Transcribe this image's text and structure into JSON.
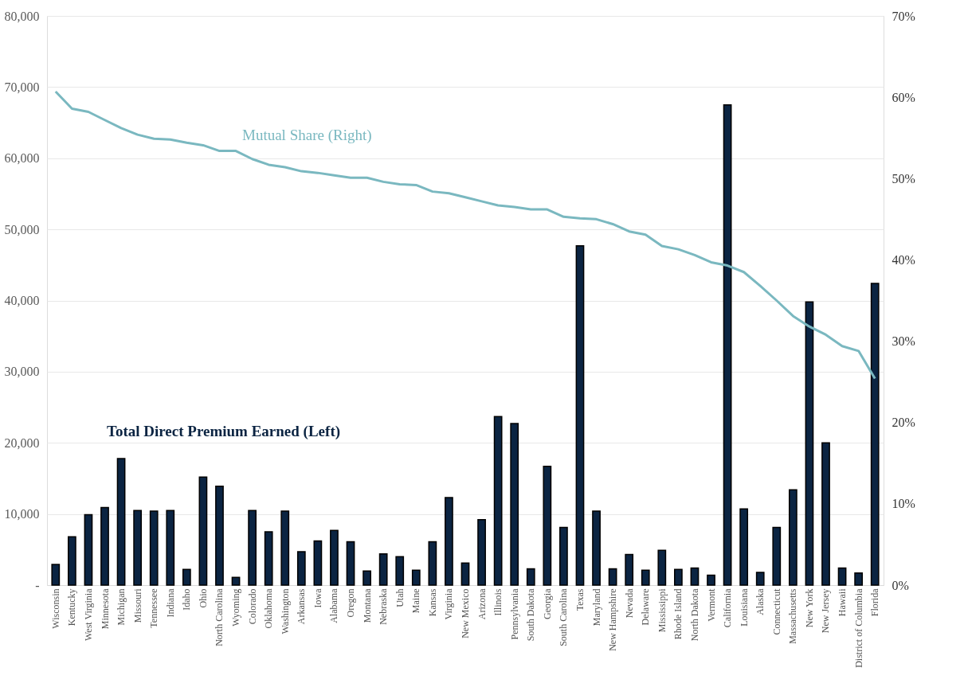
{
  "chart_data": {
    "type": "bar",
    "categories": [
      "Wisconsin",
      "Kentucky",
      "West Virginia",
      "Minnesota",
      "Michigan",
      "Missouri",
      "Tennessee",
      "Indiana",
      "Idaho",
      "Ohio",
      "North Carolina",
      "Wyoming",
      "Colorado",
      "Oklahoma",
      "Washington",
      "Arkansas",
      "Iowa",
      "Alabama",
      "Oregon",
      "Montana",
      "Nebraska",
      "Utah",
      "Maine",
      "Kansas",
      "Virginia",
      "New Mexico",
      "Arizona",
      "Illinois",
      "Pennsylvania",
      "South Dakota",
      "Georgia",
      "South Carolina",
      "Texas",
      "Maryland",
      "New Hampshire",
      "Nevada",
      "Delaware",
      "Mississippi",
      "Rhode Island",
      "North Dakota",
      "Vermont",
      "California",
      "Louisiana",
      "Alaska",
      "Connecticut",
      "Massachusetts",
      "New York",
      "New Jersey",
      "Hawaii",
      "District of Columbia",
      "Florida"
    ],
    "series": [
      {
        "name": "Total Direct Premium Earned (Left)",
        "color": "#0b2442",
        "values": [
          2900,
          6800,
          9900,
          10900,
          17800,
          10500,
          10400,
          10500,
          2200,
          15200,
          13900,
          1100,
          10500,
          7500,
          10400,
          4700,
          6200,
          7700,
          6100,
          2000,
          4400,
          4000,
          2100,
          6100,
          12300,
          3100,
          9200,
          23700,
          22700,
          2300,
          16700,
          8100,
          47700,
          10400,
          2300,
          4300,
          2100,
          4900,
          2200,
          2400,
          1400,
          67500,
          10700,
          1800,
          8100,
          13400,
          39800,
          20000,
          2400,
          1700,
          42400
        ]
      },
      {
        "name": "Mutual Share (Right)",
        "type": "line",
        "axis": "y2",
        "color": "#7ab8c0",
        "values": [
          60.7,
          58.6,
          58.2,
          57.2,
          56.2,
          55.4,
          54.9,
          54.8,
          54.4,
          54.1,
          53.4,
          53.4,
          52.4,
          51.7,
          51.4,
          50.9,
          50.7,
          50.4,
          50.1,
          50.1,
          49.6,
          49.3,
          49.2,
          48.4,
          48.2,
          47.7,
          47.2,
          46.7,
          46.5,
          46.2,
          46.2,
          45.3,
          45.1,
          45.0,
          44.4,
          43.5,
          43.1,
          41.7,
          41.3,
          40.6,
          39.7,
          39.3,
          38.5,
          36.8,
          35.0,
          33.1,
          31.8,
          30.8,
          29.4,
          28.8,
          25.4
        ]
      }
    ],
    "ylim": [
      0,
      80000
    ],
    "yticks": [
      {
        "value": 0,
        "label": "-"
      },
      {
        "value": 10000,
        "label": "10,000"
      },
      {
        "value": 20000,
        "label": "20,000"
      },
      {
        "value": 30000,
        "label": "30,000"
      },
      {
        "value": 40000,
        "label": "40,000"
      },
      {
        "value": 50000,
        "label": "50,000"
      },
      {
        "value": 60000,
        "label": "60,000"
      },
      {
        "value": 70000,
        "label": "70,000"
      },
      {
        "value": 80000,
        "label": "80,000"
      }
    ],
    "y2lim": [
      0,
      70
    ],
    "y2ticks": [
      {
        "value": 0,
        "label": "0%"
      },
      {
        "value": 10,
        "label": "10%"
      },
      {
        "value": 20,
        "label": "20%"
      },
      {
        "value": 30,
        "label": "30%"
      },
      {
        "value": 40,
        "label": "40%"
      },
      {
        "value": 50,
        "label": "50%"
      },
      {
        "value": 60,
        "label": "60%"
      },
      {
        "value": 70,
        "label": "70%"
      }
    ],
    "grid": "y"
  }
}
